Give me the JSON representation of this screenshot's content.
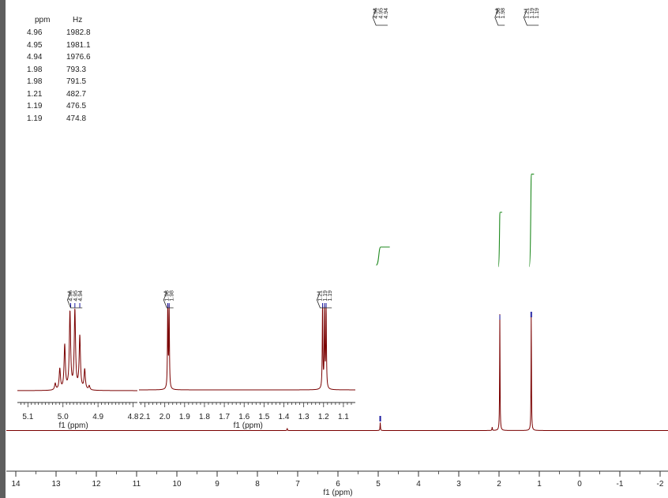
{
  "peak_table": {
    "header": {
      "ppm": "ppm",
      "hz": "Hz"
    },
    "rows": [
      {
        "ppm": "4.96",
        "hz": "1982.8"
      },
      {
        "ppm": "4.95",
        "hz": "1981.1"
      },
      {
        "ppm": "4.94",
        "hz": "1976.6"
      },
      {
        "ppm": "1.98",
        "hz": "793.3"
      },
      {
        "ppm": "1.98",
        "hz": "791.5"
      },
      {
        "ppm": "1.21",
        "hz": "482.7"
      },
      {
        "ppm": "1.19",
        "hz": "476.5"
      },
      {
        "ppm": "1.19",
        "hz": "474.8"
      }
    ]
  },
  "colors": {
    "spectrum": "#7a0000",
    "integral": "#1f8a1f",
    "peak_marker": "#1a1aa0",
    "axis": "#333333"
  },
  "chart_data": {
    "type": "line",
    "title": "",
    "main": {
      "xlabel": "f1 (ppm)",
      "xlim": [
        14,
        -2
      ],
      "reversed": true,
      "ticks": [
        "14",
        "13",
        "12",
        "11",
        "10",
        "9",
        "8",
        "7",
        "6",
        "5",
        "4",
        "3",
        "2",
        "1",
        "0",
        "-1",
        "-2"
      ],
      "peaks": [
        {
          "ppm": 4.95,
          "height": 0.07
        },
        {
          "ppm": 1.98,
          "height": 1.0
        },
        {
          "ppm": 1.2,
          "height": 1.0
        },
        {
          "ppm": 7.26,
          "height": 0.02
        },
        {
          "ppm": 2.17,
          "height": 0.03
        }
      ],
      "peak_labels": [
        {
          "group": "a",
          "labels": [
            "4.96",
            "4.95",
            "4.94"
          ]
        },
        {
          "group": "b",
          "labels": [
            "1.98",
            "1.98"
          ]
        },
        {
          "group": "c",
          "labels": [
            "1.21",
            "1.19",
            "1.19"
          ]
        }
      ],
      "integrals": [
        {
          "from": 5.05,
          "to": 4.85,
          "relative": 1.0
        },
        {
          "from": 2.0,
          "to": 1.96,
          "relative": 3.0
        },
        {
          "from": 1.23,
          "to": 1.17,
          "relative": 5.1
        }
      ]
    },
    "inset_left": {
      "xlabel": "f1 (ppm)",
      "xlim": [
        5.13,
        4.79
      ],
      "ticks": [
        "5.1",
        "5.0",
        "4.9",
        "4.8"
      ],
      "peak_labels": [
        "4.96",
        "4.95",
        "4.94"
      ],
      "multiplet": [
        {
          "ppm": 5.022,
          "height": 0.08
        },
        {
          "ppm": 5.009,
          "height": 0.26
        },
        {
          "ppm": 4.995,
          "height": 0.55
        },
        {
          "ppm": 4.98,
          "height": 0.96
        },
        {
          "ppm": 4.966,
          "height": 0.98
        },
        {
          "ppm": 4.952,
          "height": 0.66
        },
        {
          "ppm": 4.938,
          "height": 0.25
        },
        {
          "ppm": 4.925,
          "height": 0.05
        }
      ]
    },
    "inset_right": {
      "xlabel": "f1 (ppm)",
      "xlim": [
        2.13,
        1.04
      ],
      "ticks": [
        "2.1",
        "2.0",
        "1.9",
        "1.8",
        "1.7",
        "1.6",
        "1.5",
        "1.4",
        "1.3",
        "1.2",
        "1.1"
      ],
      "peak_labels_a": [
        "1.98",
        "1.98"
      ],
      "peak_labels_b": [
        "1.21",
        "1.19",
        "1.19"
      ],
      "peaks": [
        {
          "ppm": 1.985,
          "height": 1.0
        },
        {
          "ppm": 1.978,
          "height": 0.98
        },
        {
          "ppm": 1.205,
          "height": 1.0
        },
        {
          "ppm": 1.195,
          "height": 0.98
        },
        {
          "ppm": 1.187,
          "height": 0.97
        }
      ]
    }
  }
}
